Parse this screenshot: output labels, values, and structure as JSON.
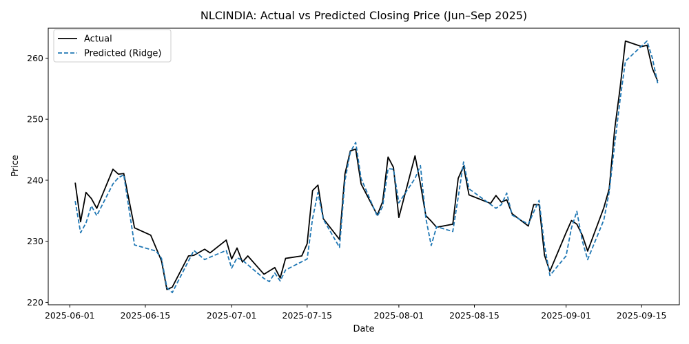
{
  "chart_data": {
    "type": "line",
    "title": "NLCINDIA: Actual vs Predicted Closing Price (Jun–Sep 2025)",
    "xlabel": "Date",
    "ylabel": "Price",
    "x_tick_labels": [
      "2025-06-01",
      "2025-06-15",
      "2025-07-01",
      "2025-07-15",
      "2025-08-01",
      "2025-08-15",
      "2025-09-01",
      "2025-09-15"
    ],
    "y_ticks": [
      220,
      230,
      240,
      250,
      260
    ],
    "xlim": [
      "2025-05-28",
      "2025-09-22"
    ],
    "ylim": [
      219.6,
      264.9
    ],
    "grid": false,
    "legend_position": "top-left",
    "series": [
      {
        "name": "Actual",
        "color": "#000000",
        "style": "solid",
        "points": [
          [
            "2025-06-02",
            239.6
          ],
          [
            "2025-06-03",
            233.2
          ],
          [
            "2025-06-04",
            238.0
          ],
          [
            "2025-06-05",
            237.0
          ],
          [
            "2025-06-06",
            235.4
          ],
          [
            "2025-06-09",
            241.8
          ],
          [
            "2025-06-10",
            241.0
          ],
          [
            "2025-06-11",
            241.1
          ],
          [
            "2025-06-13",
            232.2
          ],
          [
            "2025-06-16",
            231.0
          ],
          [
            "2025-06-18",
            226.8
          ],
          [
            "2025-06-19",
            222.1
          ],
          [
            "2025-06-20",
            222.5
          ],
          [
            "2025-06-23",
            227.6
          ],
          [
            "2025-06-24",
            227.7
          ],
          [
            "2025-06-26",
            228.7
          ],
          [
            "2025-06-27",
            228.1
          ],
          [
            "2025-06-30",
            230.2
          ],
          [
            "2025-07-01",
            227.1
          ],
          [
            "2025-07-02",
            228.9
          ],
          [
            "2025-07-03",
            226.6
          ],
          [
            "2025-07-04",
            227.6
          ],
          [
            "2025-07-07",
            224.6
          ],
          [
            "2025-07-09",
            225.7
          ],
          [
            "2025-07-10",
            224.0
          ],
          [
            "2025-07-11",
            227.2
          ],
          [
            "2025-07-14",
            227.6
          ],
          [
            "2025-07-15",
            229.6
          ],
          [
            "2025-07-16",
            238.3
          ],
          [
            "2025-07-17",
            239.2
          ],
          [
            "2025-07-18",
            233.7
          ],
          [
            "2025-07-21",
            230.3
          ],
          [
            "2025-07-22",
            241.0
          ],
          [
            "2025-07-23",
            244.8
          ],
          [
            "2025-07-24",
            245.1
          ],
          [
            "2025-07-25",
            239.4
          ],
          [
            "2025-07-28",
            234.3
          ],
          [
            "2025-07-29",
            236.5
          ],
          [
            "2025-07-30",
            243.8
          ],
          [
            "2025-07-31",
            242.1
          ],
          [
            "2025-08-01",
            233.9
          ],
          [
            "2025-08-04",
            244.0
          ],
          [
            "2025-08-05",
            239.4
          ],
          [
            "2025-08-06",
            234.2
          ],
          [
            "2025-08-07",
            233.3
          ],
          [
            "2025-08-08",
            232.3
          ],
          [
            "2025-08-11",
            232.8
          ],
          [
            "2025-08-12",
            240.3
          ],
          [
            "2025-08-13",
            242.3
          ],
          [
            "2025-08-14",
            237.6
          ],
          [
            "2025-08-18",
            236.2
          ],
          [
            "2025-08-19",
            237.5
          ],
          [
            "2025-08-20",
            236.4
          ],
          [
            "2025-08-21",
            236.8
          ],
          [
            "2025-08-22",
            234.5
          ],
          [
            "2025-08-25",
            232.5
          ],
          [
            "2025-08-26",
            236.0
          ],
          [
            "2025-08-27",
            236.0
          ],
          [
            "2025-08-28",
            227.7
          ],
          [
            "2025-08-29",
            225.1
          ],
          [
            "2025-09-01",
            231.4
          ],
          [
            "2025-09-02",
            233.4
          ],
          [
            "2025-09-03",
            232.8
          ],
          [
            "2025-09-04",
            231.0
          ],
          [
            "2025-09-05",
            228.4
          ],
          [
            "2025-09-08",
            235.5
          ],
          [
            "2025-09-09",
            238.6
          ],
          [
            "2025-09-10",
            248.3
          ],
          [
            "2025-09-11",
            255.0
          ],
          [
            "2025-09-12",
            262.8
          ],
          [
            "2025-09-15",
            261.9
          ],
          [
            "2025-09-16",
            262.1
          ],
          [
            "2025-09-17",
            258.3
          ],
          [
            "2025-09-18",
            256.2
          ]
        ]
      },
      {
        "name": "Predicted (Ridge)",
        "color": "#1f77b4",
        "style": "dashed",
        "points": [
          [
            "2025-06-02",
            236.6
          ],
          [
            "2025-06-03",
            231.4
          ],
          [
            "2025-06-04",
            233.0
          ],
          [
            "2025-06-05",
            235.8
          ],
          [
            "2025-06-06",
            234.2
          ],
          [
            "2025-06-09",
            239.4
          ],
          [
            "2025-06-10",
            240.4
          ],
          [
            "2025-06-11",
            240.9
          ],
          [
            "2025-06-13",
            229.4
          ],
          [
            "2025-06-17",
            228.4
          ],
          [
            "2025-06-18",
            227.2
          ],
          [
            "2025-06-19",
            222.4
          ],
          [
            "2025-06-20",
            221.6
          ],
          [
            "2025-06-24",
            228.5
          ],
          [
            "2025-06-26",
            227.0
          ],
          [
            "2025-06-27",
            227.4
          ],
          [
            "2025-06-30",
            228.5
          ],
          [
            "2025-07-01",
            225.6
          ],
          [
            "2025-07-02",
            227.3
          ],
          [
            "2025-07-03",
            226.9
          ],
          [
            "2025-07-07",
            223.9
          ],
          [
            "2025-07-08",
            223.4
          ],
          [
            "2025-07-09",
            224.8
          ],
          [
            "2025-07-10",
            223.5
          ],
          [
            "2025-07-11",
            225.3
          ],
          [
            "2025-07-15",
            227.1
          ],
          [
            "2025-07-16",
            233.7
          ],
          [
            "2025-07-17",
            238.0
          ],
          [
            "2025-07-18",
            233.6
          ],
          [
            "2025-07-21",
            229.0
          ],
          [
            "2025-07-22",
            239.9
          ],
          [
            "2025-07-23",
            244.6
          ],
          [
            "2025-07-24",
            246.2
          ],
          [
            "2025-07-25",
            240.3
          ],
          [
            "2025-07-28",
            234.1
          ],
          [
            "2025-07-29",
            235.7
          ],
          [
            "2025-07-30",
            241.9
          ],
          [
            "2025-07-31",
            241.8
          ],
          [
            "2025-08-01",
            236.3
          ],
          [
            "2025-08-04",
            240.3
          ],
          [
            "2025-08-05",
            242.4
          ],
          [
            "2025-08-06",
            233.8
          ],
          [
            "2025-08-07",
            229.3
          ],
          [
            "2025-08-08",
            232.4
          ],
          [
            "2025-08-11",
            231.6
          ],
          [
            "2025-08-12",
            237.2
          ],
          [
            "2025-08-13",
            243.0
          ],
          [
            "2025-08-14",
            238.6
          ],
          [
            "2025-08-19",
            235.4
          ],
          [
            "2025-08-20",
            236.0
          ],
          [
            "2025-08-21",
            237.9
          ],
          [
            "2025-08-22",
            234.3
          ],
          [
            "2025-08-25",
            232.8
          ],
          [
            "2025-08-26",
            234.8
          ],
          [
            "2025-08-27",
            236.7
          ],
          [
            "2025-08-28",
            229.3
          ],
          [
            "2025-08-29",
            224.4
          ],
          [
            "2025-09-01",
            227.6
          ],
          [
            "2025-09-02",
            232.2
          ],
          [
            "2025-09-03",
            234.9
          ],
          [
            "2025-09-04",
            230.1
          ],
          [
            "2025-09-05",
            227.0
          ],
          [
            "2025-09-08",
            233.5
          ],
          [
            "2025-09-09",
            238.1
          ],
          [
            "2025-09-10",
            245.8
          ],
          [
            "2025-09-11",
            253.1
          ],
          [
            "2025-09-12",
            259.5
          ],
          [
            "2025-09-16",
            262.8
          ],
          [
            "2025-09-17",
            260.0
          ],
          [
            "2025-09-18",
            255.8
          ]
        ]
      }
    ]
  }
}
